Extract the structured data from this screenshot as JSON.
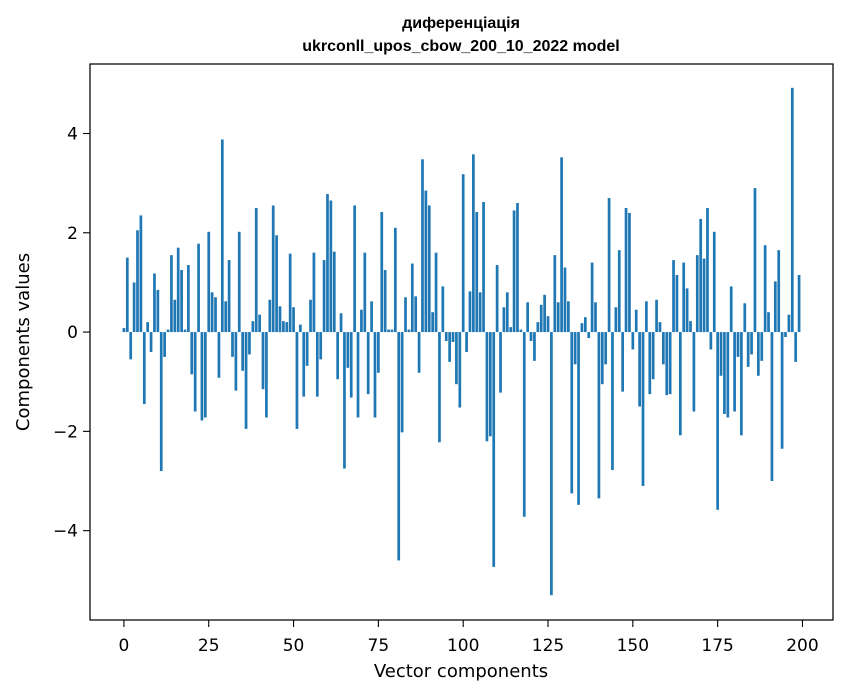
{
  "chart_data": {
    "type": "bar",
    "title_line1": "диференціація",
    "title_line2": "ukrconll_upos_cbow_200_10_2022 model",
    "xlabel": "Vector components",
    "ylabel": "Components values",
    "xlim": [
      -10,
      209
    ],
    "ylim": [
      -5.8,
      5.4
    ],
    "xticks": [
      0,
      25,
      50,
      75,
      100,
      125,
      150,
      175,
      200
    ],
    "yticks": [
      -4,
      -2,
      0,
      2,
      4
    ],
    "xtick_labels": [
      "0",
      "25",
      "50",
      "75",
      "100",
      "125",
      "150",
      "175",
      "200"
    ],
    "ytick_labels": [
      "−4",
      "−2",
      "0",
      "2",
      "4"
    ],
    "bar_color": "#1f77b4",
    "values": [
      0.08,
      1.5,
      -0.55,
      1.0,
      2.05,
      2.35,
      -1.45,
      0.2,
      -0.4,
      1.18,
      0.85,
      -2.8,
      -0.5,
      0.05,
      1.55,
      0.65,
      1.7,
      1.25,
      0.05,
      1.35,
      -0.85,
      -1.6,
      1.78,
      -1.78,
      -1.72,
      2.02,
      0.8,
      0.7,
      -0.92,
      3.88,
      0.62,
      1.45,
      -0.5,
      -1.18,
      2.02,
      -0.78,
      -1.95,
      -0.45,
      0.22,
      2.5,
      0.35,
      -1.15,
      -1.72,
      0.65,
      2.55,
      1.95,
      0.52,
      0.22,
      0.2,
      1.58,
      0.5,
      -1.95,
      0.15,
      -1.3,
      -0.68,
      0.65,
      1.6,
      -1.3,
      -0.55,
      1.45,
      2.78,
      2.65,
      1.62,
      -0.95,
      0.38,
      -2.75,
      -0.72,
      -1.32,
      2.55,
      -1.72,
      0.45,
      1.6,
      -1.25,
      0.62,
      -1.72,
      -0.82,
      2.42,
      1.25,
      0.05,
      0.05,
      2.1,
      -4.6,
      -2.02,
      0.7,
      0.05,
      1.38,
      0.72,
      -0.82,
      3.48,
      2.85,
      2.55,
      0.4,
      1.6,
      -2.22,
      0.92,
      -0.18,
      -0.6,
      -0.2,
      -1.05,
      -1.52,
      3.18,
      -0.4,
      0.82,
      3.58,
      2.42,
      0.8,
      2.62,
      -2.2,
      -2.1,
      -4.73,
      1.35,
      -1.22,
      0.5,
      0.8,
      0.1,
      2.45,
      2.6,
      0.05,
      -3.72,
      0.6,
      -0.18,
      -0.58,
      0.2,
      0.55,
      0.75,
      0.32,
      -5.3,
      1.55,
      0.6,
      3.52,
      1.3,
      0.62,
      -3.25,
      -0.65,
      -3.48,
      0.18,
      0.3,
      -0.12,
      1.4,
      0.6,
      -3.35,
      -1.05,
      -0.65,
      2.7,
      -2.78,
      0.5,
      1.65,
      -1.2,
      2.5,
      2.4,
      -0.35,
      0.45,
      -1.5,
      -3.1,
      0.62,
      -1.25,
      -0.95,
      0.65,
      0.2,
      -0.65,
      -1.27,
      -1.25,
      1.45,
      1.15,
      -2.08,
      1.4,
      0.88,
      0.22,
      -1.6,
      1.55,
      2.28,
      1.48,
      2.5,
      -0.35,
      2.02,
      -3.58,
      -0.88,
      -1.65,
      -1.72,
      0.92,
      -1.6,
      -0.5,
      -2.08,
      0.58,
      -0.7,
      -0.45,
      2.9,
      -0.88,
      -0.58,
      1.75,
      0.4,
      -3.0,
      1.02,
      1.65,
      -2.35,
      -0.1,
      0.35,
      4.92,
      -0.6,
      1.15
    ]
  }
}
